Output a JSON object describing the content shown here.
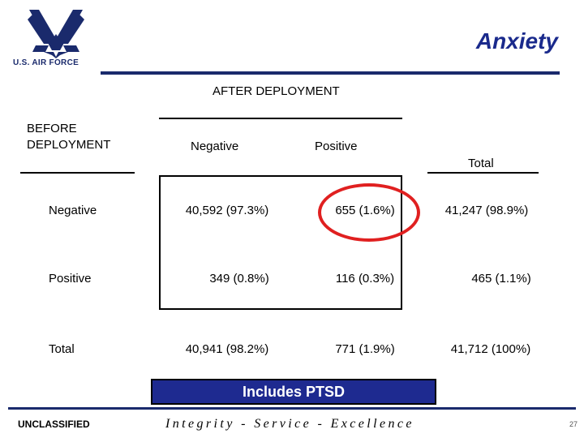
{
  "header": {
    "logo_text": "U.S. AIR FORCE",
    "title": "Anxiety",
    "accent_color": "#1a2a6c",
    "title_color": "#1a2a8c"
  },
  "table": {
    "column_group_label": "AFTER DEPLOYMENT",
    "row_group_label_line1": "BEFORE",
    "row_group_label_line2": "DEPLOYMENT",
    "col_headers": [
      "Negative",
      "Positive",
      "Total"
    ],
    "rows": [
      {
        "label": "Negative",
        "cells": [
          "40,592 (97.3%)",
          "655 (1.6%)",
          "41,247 (98.9%)"
        ]
      },
      {
        "label": "Positive",
        "cells": [
          "349 (0.8%)",
          "116 (0.3%)",
          "465 (1.1%)"
        ]
      },
      {
        "label": "Total",
        "cells": [
          "40,941 (98.2%)",
          "771 (1.9%)",
          "41,712 (100%)"
        ]
      }
    ],
    "highlight_color": "#e02020"
  },
  "callout": {
    "text": "Includes PTSD",
    "background": "#1e2a90"
  },
  "footer": {
    "classification": "UNCLASSIFIED",
    "motto": "Integrity - Service - Excellence",
    "page_number": "27"
  }
}
